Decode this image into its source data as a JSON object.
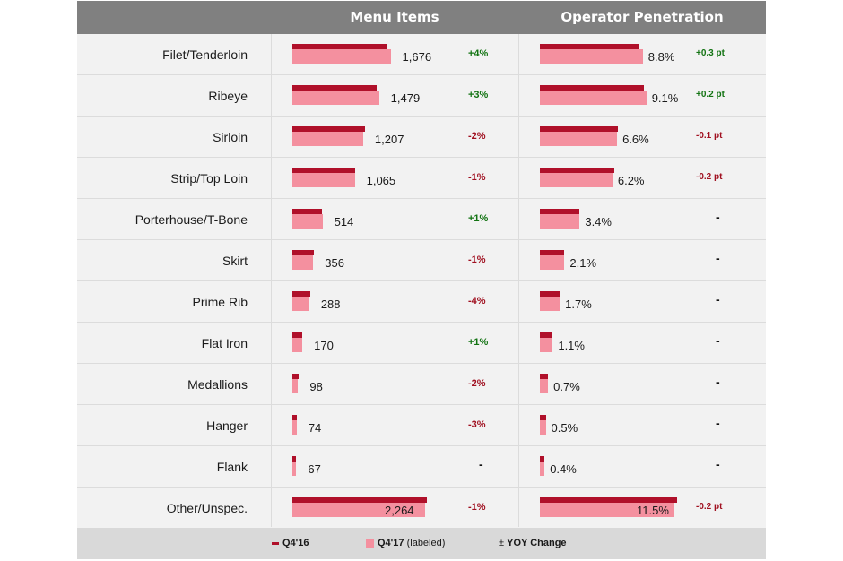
{
  "headers": {
    "menu": "Menu Items",
    "operator": "Operator Penetration"
  },
  "colors": {
    "q4_16": "#b0102a",
    "q4_17": "#f4909f",
    "positive": "#127312",
    "negative": "#a01020"
  },
  "chart_data": {
    "type": "bar",
    "categories": [
      "Filet/Tenderloin",
      "Ribeye",
      "Sirloin",
      "Strip/Top Loin",
      "Porterhouse/T-Bone",
      "Skirt",
      "Prime Rib",
      "Flat Iron",
      "Medallions",
      "Hanger",
      "Flank",
      "Other/Unspec."
    ],
    "menu_items": {
      "q4_17": [
        1676,
        1479,
        1207,
        1065,
        514,
        356,
        288,
        170,
        98,
        74,
        67,
        2264
      ],
      "q4_17_labels": [
        "1,676",
        "1,479",
        "1,207",
        "1,065",
        "514",
        "356",
        "288",
        "170",
        "98",
        "74",
        "67",
        "2,264"
      ],
      "q4_16_approx": [
        1612,
        1436,
        1232,
        1076,
        509,
        360,
        300,
        168,
        100,
        76,
        67,
        2287
      ],
      "yoy": [
        "+4%",
        "+3%",
        "-2%",
        "-1%",
        "+1%",
        "-1%",
        "-4%",
        "+1%",
        "-2%",
        "-3%",
        "-",
        "-1%"
      ]
    },
    "operator_penetration": {
      "q4_17": [
        8.8,
        9.1,
        6.6,
        6.2,
        3.4,
        2.1,
        1.7,
        1.1,
        0.7,
        0.5,
        0.4,
        11.5
      ],
      "q4_17_labels": [
        "8.8%",
        "9.1%",
        "6.6%",
        "6.2%",
        "3.4%",
        "2.1%",
        "1.7%",
        "1.1%",
        "0.7%",
        "0.5%",
        "0.4%",
        "11.5%"
      ],
      "q4_16_approx": [
        8.5,
        8.9,
        6.7,
        6.4,
        3.4,
        2.1,
        1.7,
        1.1,
        0.7,
        0.5,
        0.4,
        11.7
      ],
      "yoy": [
        "+0.3 pt",
        "+0.2 pt",
        "-0.1 pt",
        "-0.2 pt",
        "-",
        "-",
        "-",
        "-",
        "-",
        "-",
        "-",
        "-0.2 pt"
      ]
    }
  },
  "legend": {
    "q4_16": "Q4'16",
    "q4_17": "Q4'17",
    "q4_17_note": "(labeled)",
    "yoy_symbol": "±",
    "yoy": "YOY Change"
  }
}
